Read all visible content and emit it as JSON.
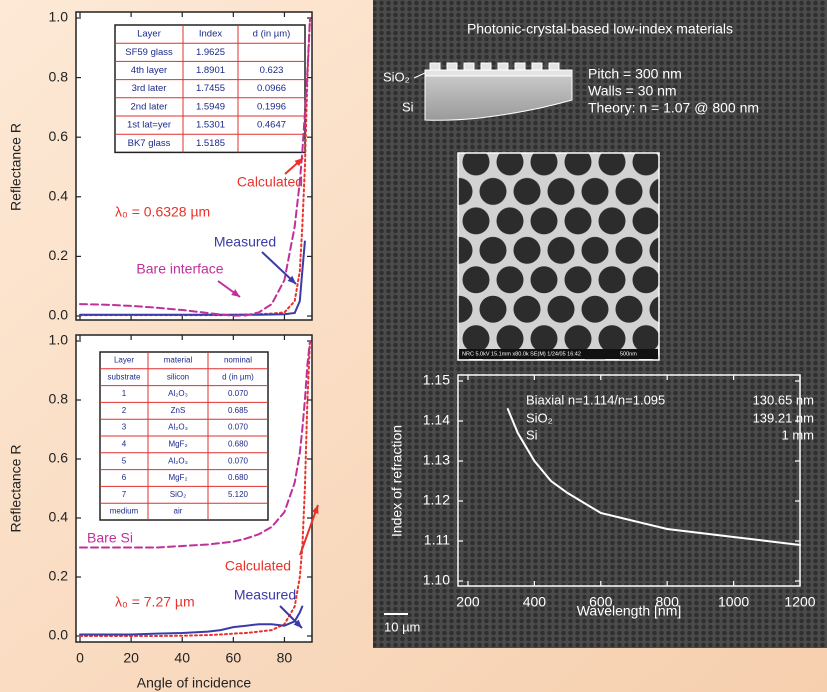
{
  "chart_data": [
    {
      "type": "line",
      "ylabel": "Reflectance R",
      "x": [
        0,
        10,
        20,
        30,
        40,
        50,
        55,
        60,
        65,
        70,
        75,
        80,
        84,
        86,
        87,
        88,
        89,
        90
      ],
      "xlim": [
        0,
        90
      ],
      "xticks": [
        0,
        20,
        40,
        60,
        80
      ],
      "ylim": [
        0,
        1
      ],
      "yticks": [
        {
          "value": 0,
          "label": "0.0"
        },
        0.2,
        0.4,
        0.6,
        0.8,
        {
          "value": 1,
          "label": "1.0"
        }
      ],
      "series": [
        {
          "name": "Calculated",
          "color": "#e8322a",
          "linestyle": "dotted",
          "values": [
            0.003,
            0.003,
            0.003,
            0.003,
            0.003,
            0.003,
            0.003,
            0.004,
            0.005,
            0.006,
            0.008,
            0.012,
            0.05,
            0.15,
            0.3,
            0.5,
            0.8,
            1.0
          ]
        },
        {
          "name": "Measured",
          "color": "#3a3aa8",
          "linestyle": "solid",
          "values": [
            0.004,
            0.004,
            0.004,
            0.004,
            0.004,
            0.004,
            0.004,
            0.004,
            0.004,
            0.004,
            0.005,
            0.006,
            0.01,
            0.05,
            0.15,
            0.25,
            null,
            null
          ]
        },
        {
          "name": "Bare interface",
          "color": "#c0309a",
          "linestyle": "dashed",
          "values": [
            0.04,
            0.038,
            0.034,
            0.028,
            0.02,
            0.01,
            0.005,
            0.001,
            0.002,
            0.012,
            0.04,
            0.12,
            0.3,
            0.45,
            0.55,
            0.68,
            0.82,
            1.0
          ]
        }
      ],
      "annotation": "λ₀ = 0.6328 µm",
      "table": {
        "rows": [
          [
            "Layer",
            "Index",
            "d (in µm)"
          ],
          [
            "SF59 glass",
            "1.9625",
            null
          ],
          [
            "4th layer",
            "1.8901",
            "0.623"
          ],
          [
            "3rd later",
            "1.7455",
            "0.0966"
          ],
          [
            "2nd later",
            "1.5949",
            "0.1996"
          ],
          [
            "1st lat=yer",
            "1.5301",
            "0.4647"
          ],
          [
            "BK7 glass",
            "1.5185",
            null
          ]
        ]
      }
    },
    {
      "type": "line",
      "ylabel": "Reflectance R",
      "xlabel": "Angle of incidence",
      "x": [
        0,
        10,
        20,
        30,
        40,
        50,
        55,
        60,
        65,
        70,
        75,
        80,
        84,
        86,
        87,
        88,
        89,
        90
      ],
      "xlim": [
        0,
        90
      ],
      "xticks": [
        0,
        20,
        40,
        60,
        80
      ],
      "ylim": [
        0,
        1
      ],
      "yticks": [
        {
          "value": 0,
          "label": "0.0"
        },
        0.2,
        0.4,
        0.6,
        0.8,
        {
          "value": 1,
          "label": "1.0"
        }
      ],
      "series": [
        {
          "name": "Calculated",
          "color": "#e8322a",
          "linestyle": "dotted",
          "values": [
            0,
            0,
            0,
            0,
            0.001,
            0.003,
            0.005,
            0.008,
            0.01,
            0.015,
            0.02,
            0.04,
            0.1,
            0.2,
            0.3,
            0.5,
            0.8,
            1.0
          ]
        },
        {
          "name": "Measured",
          "color": "#3a3aa8",
          "linestyle": "solid",
          "values": [
            0.005,
            0.005,
            0.005,
            0.008,
            0.01,
            0.015,
            0.02,
            0.03,
            0.035,
            0.04,
            0.04,
            0.035,
            0.05,
            0.08,
            0.1,
            null,
            null,
            null
          ]
        },
        {
          "name": "Bare Si",
          "color": "#c0309a",
          "linestyle": "dashed",
          "values": [
            0.3,
            0.3,
            0.3,
            0.3,
            0.305,
            0.31,
            0.315,
            0.32,
            0.33,
            0.345,
            0.37,
            0.42,
            0.52,
            0.62,
            0.7,
            0.8,
            0.92,
            1.0
          ]
        }
      ],
      "annotation": "λ₀ = 7.27 µm",
      "table": {
        "rows": [
          [
            "Layer",
            "material",
            "nominal"
          ],
          [
            "substrate",
            "silicon",
            "d (in µm)"
          ],
          [
            "1",
            "Al₂O₃",
            "0.070"
          ],
          [
            "2",
            "ZnS",
            "0.685"
          ],
          [
            "3",
            "Al₂O₃",
            "0.070"
          ],
          [
            "4",
            "MgF₂",
            "0.680"
          ],
          [
            "5",
            "Al₂O₃",
            "0.070"
          ],
          [
            "6",
            "MgF₂",
            "0.680"
          ],
          [
            "7",
            "SiO₂",
            "5.120"
          ],
          [
            "medium",
            "air",
            null
          ]
        ]
      }
    },
    {
      "type": "line",
      "ylabel": "Index of refraction",
      "xlabel": "Wavelength [nm]",
      "x": [
        320,
        350,
        400,
        450,
        500,
        600,
        700,
        800,
        900,
        1000,
        1100,
        1200
      ],
      "xlim": [
        170,
        1200
      ],
      "xticks": [
        200,
        400,
        600,
        800,
        1000,
        1200
      ],
      "ylim": [
        1.1,
        1.15
      ],
      "yticks": [
        {
          "value": 1.1,
          "label": "1.10"
        },
        1.11,
        1.12,
        1.13,
        1.14,
        {
          "value": 1.15,
          "label": "1.15"
        }
      ],
      "series": [
        {
          "color": "#ffffff",
          "linestyle": "solid",
          "values": [
            1.143,
            1.137,
            1.13,
            1.125,
            1.122,
            1.117,
            1.115,
            1.113,
            1.112,
            1.111,
            1.11,
            1.109
          ]
        }
      ],
      "annotations": [
        [
          "Biaxial n=1.114/n=1.095",
          "130.65 nm"
        ],
        [
          "SiO₂",
          "139.21 nm"
        ],
        [
          "Si",
          "1 mm"
        ]
      ]
    }
  ],
  "panel": {
    "title": "Photonic-crystal-based low-index materials",
    "schematic_labels": [
      "SiO₂",
      "Si"
    ],
    "specs": [
      "Pitch = 300 nm",
      "Walls = 30 nm",
      "Theory: n = 1.07 @ 800 nm"
    ],
    "sem_caption": "NRC 5.0kV 15.1mm x80.0k SE(M) 1/24/05 16:42",
    "sem_scale": "500nm",
    "scale_bar": "10 µm"
  }
}
